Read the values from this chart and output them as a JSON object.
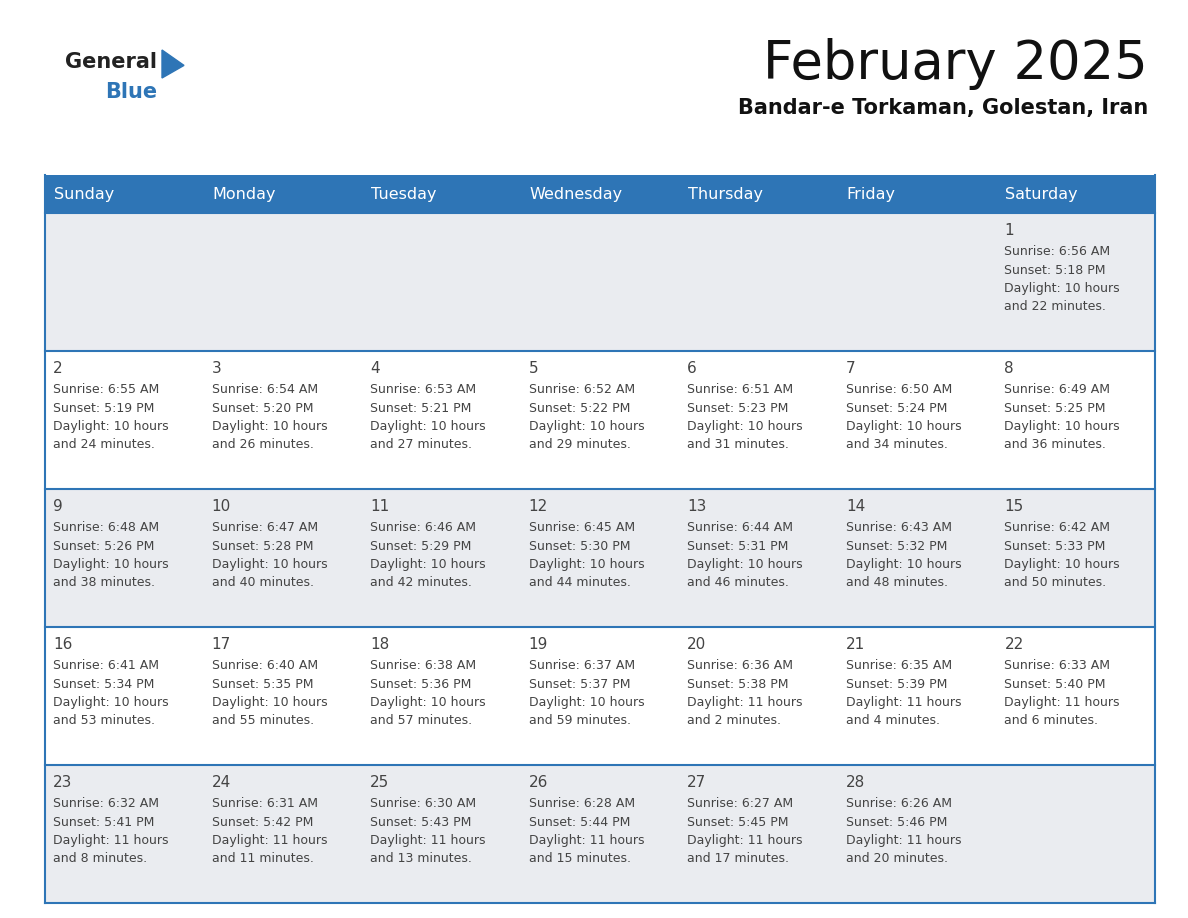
{
  "title": "February 2025",
  "subtitle": "Bandar-e Torkaman, Golestan, Iran",
  "header_bg": "#2E75B6",
  "header_text_color": "#FFFFFF",
  "cell_bg_odd": "#EAECF0",
  "cell_bg_even": "#FFFFFF",
  "border_color": "#2E75B6",
  "text_color": "#444444",
  "days_of_week": [
    "Sunday",
    "Monday",
    "Tuesday",
    "Wednesday",
    "Thursday",
    "Friday",
    "Saturday"
  ],
  "weeks": [
    [
      {
        "day": null
      },
      {
        "day": null
      },
      {
        "day": null
      },
      {
        "day": null
      },
      {
        "day": null
      },
      {
        "day": null
      },
      {
        "day": 1,
        "sunrise": "6:56 AM",
        "sunset": "5:18 PM",
        "daylight": "10 hours and 22 minutes."
      }
    ],
    [
      {
        "day": 2,
        "sunrise": "6:55 AM",
        "sunset": "5:19 PM",
        "daylight": "10 hours and 24 minutes."
      },
      {
        "day": 3,
        "sunrise": "6:54 AM",
        "sunset": "5:20 PM",
        "daylight": "10 hours and 26 minutes."
      },
      {
        "day": 4,
        "sunrise": "6:53 AM",
        "sunset": "5:21 PM",
        "daylight": "10 hours and 27 minutes."
      },
      {
        "day": 5,
        "sunrise": "6:52 AM",
        "sunset": "5:22 PM",
        "daylight": "10 hours and 29 minutes."
      },
      {
        "day": 6,
        "sunrise": "6:51 AM",
        "sunset": "5:23 PM",
        "daylight": "10 hours and 31 minutes."
      },
      {
        "day": 7,
        "sunrise": "6:50 AM",
        "sunset": "5:24 PM",
        "daylight": "10 hours and 34 minutes."
      },
      {
        "day": 8,
        "sunrise": "6:49 AM",
        "sunset": "5:25 PM",
        "daylight": "10 hours and 36 minutes."
      }
    ],
    [
      {
        "day": 9,
        "sunrise": "6:48 AM",
        "sunset": "5:26 PM",
        "daylight": "10 hours and 38 minutes."
      },
      {
        "day": 10,
        "sunrise": "6:47 AM",
        "sunset": "5:28 PM",
        "daylight": "10 hours and 40 minutes."
      },
      {
        "day": 11,
        "sunrise": "6:46 AM",
        "sunset": "5:29 PM",
        "daylight": "10 hours and 42 minutes."
      },
      {
        "day": 12,
        "sunrise": "6:45 AM",
        "sunset": "5:30 PM",
        "daylight": "10 hours and 44 minutes."
      },
      {
        "day": 13,
        "sunrise": "6:44 AM",
        "sunset": "5:31 PM",
        "daylight": "10 hours and 46 minutes."
      },
      {
        "day": 14,
        "sunrise": "6:43 AM",
        "sunset": "5:32 PM",
        "daylight": "10 hours and 48 minutes."
      },
      {
        "day": 15,
        "sunrise": "6:42 AM",
        "sunset": "5:33 PM",
        "daylight": "10 hours and 50 minutes."
      }
    ],
    [
      {
        "day": 16,
        "sunrise": "6:41 AM",
        "sunset": "5:34 PM",
        "daylight": "10 hours and 53 minutes."
      },
      {
        "day": 17,
        "sunrise": "6:40 AM",
        "sunset": "5:35 PM",
        "daylight": "10 hours and 55 minutes."
      },
      {
        "day": 18,
        "sunrise": "6:38 AM",
        "sunset": "5:36 PM",
        "daylight": "10 hours and 57 minutes."
      },
      {
        "day": 19,
        "sunrise": "6:37 AM",
        "sunset": "5:37 PM",
        "daylight": "10 hours and 59 minutes."
      },
      {
        "day": 20,
        "sunrise": "6:36 AM",
        "sunset": "5:38 PM",
        "daylight": "11 hours and 2 minutes."
      },
      {
        "day": 21,
        "sunrise": "6:35 AM",
        "sunset": "5:39 PM",
        "daylight": "11 hours and 4 minutes."
      },
      {
        "day": 22,
        "sunrise": "6:33 AM",
        "sunset": "5:40 PM",
        "daylight": "11 hours and 6 minutes."
      }
    ],
    [
      {
        "day": 23,
        "sunrise": "6:32 AM",
        "sunset": "5:41 PM",
        "daylight": "11 hours and 8 minutes."
      },
      {
        "day": 24,
        "sunrise": "6:31 AM",
        "sunset": "5:42 PM",
        "daylight": "11 hours and 11 minutes."
      },
      {
        "day": 25,
        "sunrise": "6:30 AM",
        "sunset": "5:43 PM",
        "daylight": "11 hours and 13 minutes."
      },
      {
        "day": 26,
        "sunrise": "6:28 AM",
        "sunset": "5:44 PM",
        "daylight": "11 hours and 15 minutes."
      },
      {
        "day": 27,
        "sunrise": "6:27 AM",
        "sunset": "5:45 PM",
        "daylight": "11 hours and 17 minutes."
      },
      {
        "day": 28,
        "sunrise": "6:26 AM",
        "sunset": "5:46 PM",
        "daylight": "11 hours and 20 minutes."
      },
      {
        "day": null
      }
    ]
  ],
  "logo_general_color": "#222222",
  "logo_blue_color": "#2E75B6",
  "logo_triangle_color": "#2E75B6"
}
